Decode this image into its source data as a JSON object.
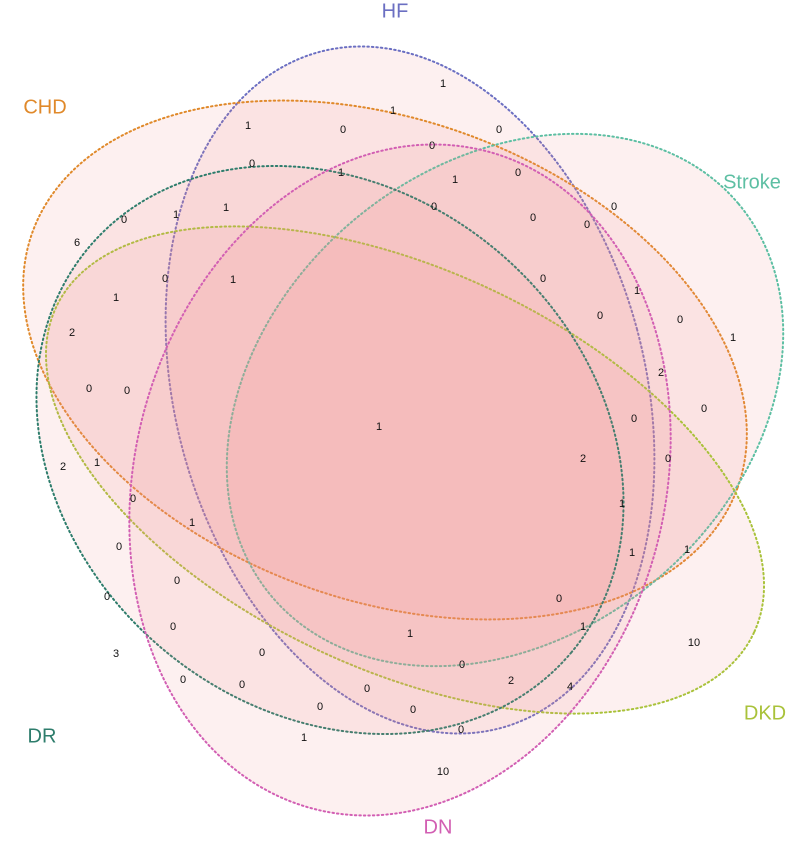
{
  "sets": [
    {
      "label": "HF",
      "color": "#6b6fc2"
    },
    {
      "label": "CHD",
      "color": "#e0892a"
    },
    {
      "label": "Stroke",
      "color": "#5dbfa3"
    },
    {
      "label": "DKD",
      "color": "#a9c23a"
    },
    {
      "label": "DR",
      "color": "#2e7d6c"
    },
    {
      "label": "DN",
      "color": "#d25fb3"
    }
  ],
  "regions": [
    1,
    1,
    1,
    0,
    0,
    0,
    0,
    1,
    1,
    0,
    0,
    0,
    1,
    1,
    0,
    0,
    0,
    6,
    0,
    1,
    0,
    1,
    1,
    0,
    0,
    2,
    1,
    0,
    0,
    2,
    0,
    0,
    1,
    2,
    0,
    2,
    1,
    0,
    1,
    1,
    0,
    1,
    1,
    0,
    0,
    0,
    0,
    1,
    1,
    10,
    3,
    0,
    0,
    2,
    4,
    0,
    0,
    0,
    0,
    0,
    0,
    1,
    10
  ]
}
